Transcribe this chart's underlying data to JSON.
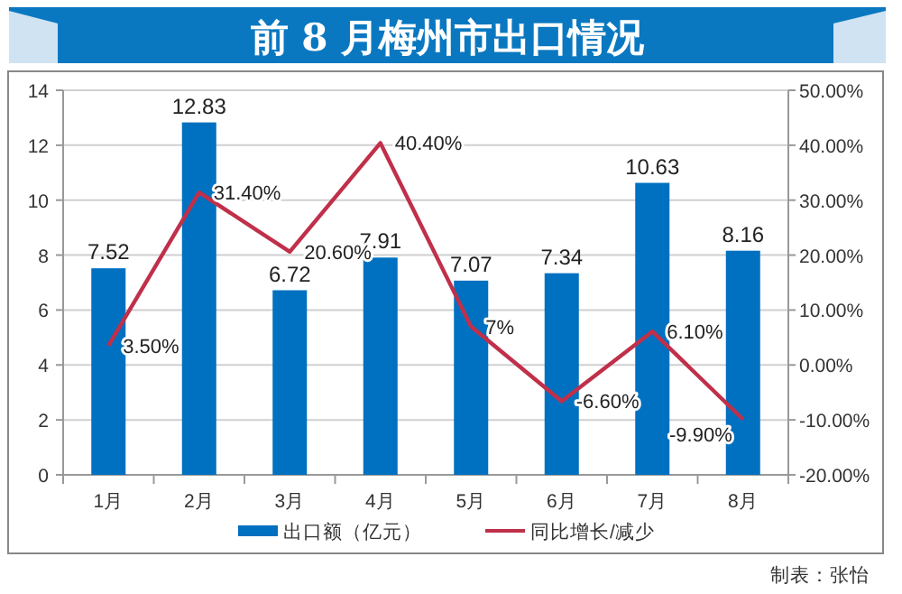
{
  "chart_data": {
    "type": "bar",
    "title": "前 8 月梅州市出口情况",
    "categories": [
      "1月",
      "2月",
      "3月",
      "4月",
      "5月",
      "6月",
      "7月",
      "8月"
    ],
    "series": [
      {
        "name": "出口额（亿元）",
        "color": "#0070c0",
        "values": [
          7.52,
          12.83,
          6.72,
          7.91,
          7.07,
          7.34,
          10.63,
          8.16
        ]
      },
      {
        "name": "同比增长/减少",
        "type": "line",
        "axis": "y2",
        "color": "#c0304a",
        "values": [
          3.5,
          31.4,
          20.6,
          40.4,
          7,
          -6.6,
          6.1,
          -9.9
        ],
        "value_labels": [
          "3.50%",
          "31.40%",
          "20.60%",
          "40.40%",
          "7%",
          "-6.60%",
          "6.10%",
          "-9.90%"
        ]
      }
    ],
    "data_labels": true,
    "ylim": [
      0,
      14
    ],
    "yticks": [
      0,
      2,
      4,
      6,
      8,
      10,
      12,
      14
    ],
    "y2lim": [
      -20,
      50
    ],
    "y2ticks": [
      {
        "value": -20,
        "label": "-20.00%"
      },
      {
        "value": -10,
        "label": "-10.00%"
      },
      {
        "value": 0,
        "label": "0.00%"
      },
      {
        "value": 10,
        "label": "10.00%"
      },
      {
        "value": 20,
        "label": "20.00%"
      },
      {
        "value": 30,
        "label": "30.00%"
      },
      {
        "value": 40,
        "label": "40.00%"
      },
      {
        "value": 50,
        "label": "50.00%"
      }
    ],
    "grid": "y",
    "legend": "bottom",
    "marker": "none",
    "annotations": [
      "制表：张怡"
    ]
  }
}
